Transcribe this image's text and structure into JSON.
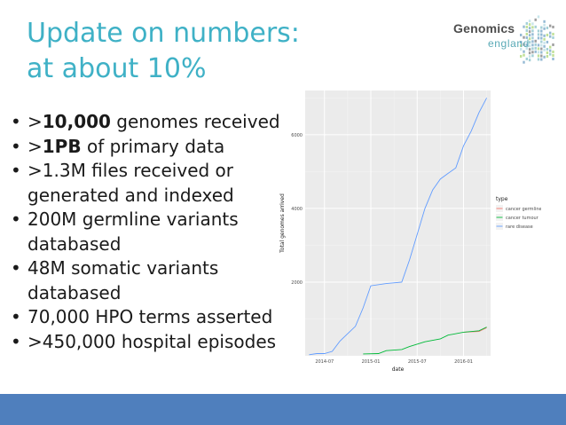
{
  "slide": {
    "title_lines": [
      "Update on numbers:",
      "at about 10%"
    ],
    "bullets": [
      {
        "prefix": ">",
        "bold": "10,000",
        "rest": " genomes received"
      },
      {
        "prefix": ">",
        "bold": "1PB",
        "rest": " of primary data"
      },
      {
        "prefix": "",
        "bold": "",
        "rest": ">1.3M files received or generated and indexed"
      },
      {
        "prefix": "",
        "bold": "",
        "rest": "200M germline variants databased"
      },
      {
        "prefix": "",
        "bold": "",
        "rest": "48M somatic variants databased"
      },
      {
        "prefix": "",
        "bold": "",
        "rest": "70,000 HPO terms asserted"
      },
      {
        "prefix": "",
        "bold": "",
        "rest": ">450,000 hospital episodes"
      }
    ],
    "bullet_glyph": "•"
  },
  "logo": {
    "word1": "Genomics",
    "word2": "england",
    "color_main": "#4d4d4d",
    "color_accent": "#5aaab6"
  },
  "colors": {
    "title": "#3fb1c6",
    "footer": "#4f7fbd",
    "plot_bg": "#ebebeb"
  },
  "chart_data": {
    "type": "line",
    "xlabel": "date",
    "ylabel": "Total genomes arrived",
    "x_ticks": [
      "2014-07",
      "2015-01",
      "2015-07",
      "2016-01"
    ],
    "y_ticks": [
      2000,
      4000,
      6000
    ],
    "ylim": [
      0,
      7200
    ],
    "grid": true,
    "legend_title": "type",
    "legend_position": "right",
    "series": [
      {
        "name": "cancer germline",
        "color": "#f8766d",
        "points": [
          [
            "2016-01",
            640
          ],
          [
            "2016-03",
            660
          ],
          [
            "2016-04",
            760
          ]
        ]
      },
      {
        "name": "cancer tumour",
        "color": "#00ba38",
        "points": [
          [
            "2014-12",
            50
          ],
          [
            "2015-02",
            60
          ],
          [
            "2015-03",
            140
          ],
          [
            "2015-05",
            170
          ],
          [
            "2015-06",
            250
          ],
          [
            "2015-08",
            380
          ],
          [
            "2015-10",
            460
          ],
          [
            "2015-11",
            560
          ],
          [
            "2016-01",
            640
          ],
          [
            "2016-03",
            680
          ],
          [
            "2016-04",
            780
          ]
        ]
      },
      {
        "name": "rare disease",
        "color": "#619cff",
        "points": [
          [
            "2014-05",
            30
          ],
          [
            "2014-06",
            60
          ],
          [
            "2014-07",
            60
          ],
          [
            "2014-08",
            120
          ],
          [
            "2014-09",
            400
          ],
          [
            "2014-10",
            600
          ],
          [
            "2014-11",
            800
          ],
          [
            "2014-12",
            1300
          ],
          [
            "2015-01",
            1900
          ],
          [
            "2015-03",
            1960
          ],
          [
            "2015-05",
            2000
          ],
          [
            "2015-06",
            2600
          ],
          [
            "2015-07",
            3300
          ],
          [
            "2015-08",
            4000
          ],
          [
            "2015-09",
            4500
          ],
          [
            "2015-10",
            4800
          ],
          [
            "2015-11",
            4950
          ],
          [
            "2015-12",
            5100
          ],
          [
            "2016-01",
            5700
          ],
          [
            "2016-02",
            6100
          ],
          [
            "2016-03",
            6600
          ],
          [
            "2016-04",
            7000
          ]
        ]
      }
    ]
  }
}
